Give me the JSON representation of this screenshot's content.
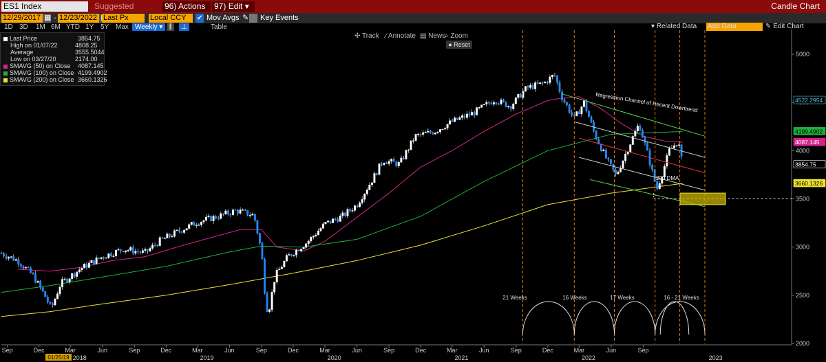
{
  "toolbar": {
    "ticker": "ES1 Index",
    "suggested": "Suggested Charts",
    "actions": "Actions",
    "actions_num": "96",
    "edit": "Edit",
    "edit_num": "97",
    "title": "Candle Chart"
  },
  "params": {
    "start_date": "12/29/2017",
    "end_date": "12/23/2022",
    "field": "Last Px",
    "currency": "Local CCY",
    "mov_avgs": "Mov Avgs",
    "key_events": "Key Events"
  },
  "periods": [
    "1D",
    "3D",
    "1M",
    "6M",
    "YTD",
    "1Y",
    "5Y",
    "Max"
  ],
  "frequency": "Weekly",
  "table_label": "Table",
  "tools": {
    "track": "Track",
    "annotate": "Annotate",
    "news": "News",
    "zoom": "Zoom",
    "reset": "Reset"
  },
  "right_tools": {
    "related": "Related Data",
    "add_data": "Add Data",
    "edit_chart": "Edit Chart"
  },
  "legend": [
    {
      "label": "Last Price",
      "value": "3854.75",
      "color": "#ffffff"
    },
    {
      "label": "High on 01/07/22",
      "value": "4808.25",
      "color": ""
    },
    {
      "label": "Average",
      "value": "3555.5044",
      "color": ""
    },
    {
      "label": "Low on 03/27/20",
      "value": "2174.00",
      "color": ""
    },
    {
      "label": "SMAVG (50)  on Close",
      "value": "4087.145",
      "color": "#d6238c"
    },
    {
      "label": "SMAVG (100)  on Close",
      "value": "4199.4902",
      "color": "#1fae3e"
    },
    {
      "label": "SMAVG (200)  on Close",
      "value": "3660.1326",
      "color": "#f0e030"
    }
  ],
  "chart_data": {
    "type": "candlestick",
    "title": "",
    "ylim": [
      2000,
      5050
    ],
    "y_ticks": [
      2000,
      2500,
      3000,
      3500,
      4000,
      4500,
      5000
    ],
    "x_tick_labels": [
      "Sep",
      "Dec",
      "Mar",
      "Jun",
      "Sep",
      "Dec",
      "Mar",
      "Jun",
      "Sep",
      "Dec",
      "Mar",
      "Jun",
      "Sep",
      "Dec",
      "Mar",
      "Jun",
      "Sep",
      "Dec",
      "Mar",
      "Jun",
      "Sep"
    ],
    "x_year_labels": [
      "2018",
      "2019",
      "2020",
      "2021",
      "2022",
      "2023"
    ],
    "cursor_date_label": "01/25/19",
    "close_points": [
      [
        "2017-08-15",
        2935
      ],
      [
        "2017-10-01",
        2860
      ],
      [
        "2017-11-15",
        2700
      ],
      [
        "2017-12-20",
        2480
      ],
      [
        "2018-01-05",
        2360
      ],
      [
        "2018-02-01",
        2620
      ],
      [
        "2018-04-01",
        2780
      ],
      [
        "2018-06-01",
        2900
      ],
      [
        "2018-08-01",
        2980
      ],
      [
        "2018-10-01",
        2940
      ],
      [
        "2018-11-15",
        3070
      ],
      [
        "2019-01-15",
        3180
      ],
      [
        "2019-03-01",
        3260
      ],
      [
        "2019-05-01",
        3320
      ],
      [
        "2019-06-20",
        3380
      ],
      [
        "2019-08-10",
        3330
      ],
      [
        "2019-09-01",
        2950
      ],
      [
        "2019-09-12",
        2470
      ],
      [
        "2019-09-20",
        2300
      ],
      [
        "2019-10-10",
        2700
      ],
      [
        "2019-11-15",
        2900
      ],
      [
        "2020-01-10",
        3050
      ],
      [
        "2020-03-01",
        3240
      ],
      [
        "2020-04-20",
        3320
      ],
      [
        "2020-06-01",
        3440
      ],
      [
        "2020-07-15",
        3700
      ],
      [
        "2020-08-15",
        3900
      ],
      [
        "2020-10-01",
        3860
      ],
      [
        "2020-11-15",
        4150
      ],
      [
        "2021-01-10",
        4200
      ],
      [
        "2021-03-01",
        4300
      ],
      [
        "2021-05-01",
        4390
      ],
      [
        "2021-07-01",
        4530
      ],
      [
        "2021-08-15",
        4460
      ],
      [
        "2021-10-01",
        4650
      ],
      [
        "2021-11-20",
        4700
      ],
      [
        "2021-12-20",
        4790
      ],
      [
        "2022-01-10",
        4560
      ],
      [
        "2022-02-15",
        4330
      ],
      [
        "2022-03-15",
        4500
      ],
      [
        "2022-04-15",
        4170
      ],
      [
        "2022-05-20",
        3900
      ],
      [
        "2022-06-15",
        3740
      ],
      [
        "2022-08-01",
        4130
      ],
      [
        "2022-08-20",
        4280
      ],
      [
        "2022-09-15",
        3950
      ],
      [
        "2022-10-10",
        3600
      ],
      [
        "2022-10-25",
        3760
      ],
      [
        "2022-11-15",
        4000
      ],
      [
        "2022-12-10",
        4100
      ],
      [
        "2022-12-23",
        3854.75
      ]
    ],
    "series": [
      {
        "name": "SMAVG (50)  on Close",
        "color": "#d6238c",
        "values": [
          [
            "2017-10-01",
            2770
          ],
          [
            "2018-01-01",
            2750
          ],
          [
            "2018-04-01",
            2790
          ],
          [
            "2018-07-01",
            2860
          ],
          [
            "2018-10-01",
            2900
          ],
          [
            "2019-01-01",
            3000
          ],
          [
            "2019-04-01",
            3090
          ],
          [
            "2019-07-01",
            3180
          ],
          [
            "2019-09-01",
            3180
          ],
          [
            "2019-10-15",
            3000
          ],
          [
            "2020-01-01",
            2960
          ],
          [
            "2020-03-01",
            3060
          ],
          [
            "2020-06-01",
            3310
          ],
          [
            "2020-09-01",
            3560
          ],
          [
            "2020-12-01",
            3830
          ],
          [
            "2021-03-01",
            4000
          ],
          [
            "2021-06-01",
            4200
          ],
          [
            "2021-09-01",
            4380
          ],
          [
            "2021-12-01",
            4520
          ],
          [
            "2022-01-01",
            4540
          ],
          [
            "2022-03-01",
            4560
          ],
          [
            "2022-05-01",
            4440
          ],
          [
            "2022-07-01",
            4280
          ],
          [
            "2022-09-01",
            4150
          ],
          [
            "2022-11-01",
            4100
          ],
          [
            "2022-12-23",
            4087.145
          ]
        ]
      },
      {
        "name": "SMAVG (100)  on Close",
        "color": "#1fae3e",
        "values": [
          [
            "2017-08-15",
            2530
          ],
          [
            "2018-01-01",
            2600
          ],
          [
            "2018-06-01",
            2690
          ],
          [
            "2018-12-01",
            2800
          ],
          [
            "2019-06-01",
            2950
          ],
          [
            "2019-09-01",
            3010
          ],
          [
            "2020-01-01",
            3000
          ],
          [
            "2020-06-01",
            3080
          ],
          [
            "2020-12-01",
            3320
          ],
          [
            "2021-06-01",
            3680
          ],
          [
            "2021-12-01",
            4000
          ],
          [
            "2022-06-01",
            4170
          ],
          [
            "2022-12-23",
            4199.4902
          ]
        ]
      },
      {
        "name": "SMAVG (200)  on Close",
        "color": "#f0e030",
        "values": [
          [
            "2017-08-15",
            2280
          ],
          [
            "2018-01-01",
            2330
          ],
          [
            "2018-06-01",
            2410
          ],
          [
            "2018-12-01",
            2500
          ],
          [
            "2019-06-01",
            2610
          ],
          [
            "2019-12-01",
            2730
          ],
          [
            "2020-06-01",
            2860
          ],
          [
            "2020-12-01",
            3020
          ],
          [
            "2021-06-01",
            3220
          ],
          [
            "2021-12-01",
            3440
          ],
          [
            "2022-06-01",
            3560
          ],
          [
            "2022-12-23",
            3660.1326
          ]
        ]
      }
    ],
    "value_labels": [
      "4522.2954",
      "4199.4902",
      "4087.145",
      "3854.75",
      "3660.1326"
    ],
    "annotations": {
      "regression": "Regression Channel of Recent Downtrend",
      "dma": "200 DMA",
      "cycles": [
        "21 Weeks",
        "16 Weeks",
        "17 Weeks",
        "16 - 21 Weeks"
      ]
    },
    "support_level": 3500
  }
}
